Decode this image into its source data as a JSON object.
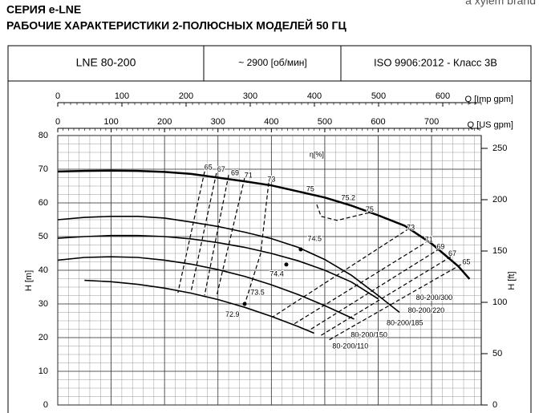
{
  "chart_data": {
    "type": "pump_curve",
    "brand": "a xylem brand",
    "series_title": "СЕРИЯ e-LNE",
    "title": "РАБОЧИЕ ХАРАКТЕРИСТИКИ 2-ПОЛЮСНЫХ МОДЕЛЕЙ 50 ГЦ",
    "header": [
      "LNE 80-200",
      "~ 2900 [об/мин]",
      "ISO 9906:2012 - Класс 3В"
    ],
    "xlabel": "Q [US gpm]",
    "x2label": "Q [Imp gpm]",
    "ylabel": "H [m]",
    "y2label": "H [ft]",
    "xlim": [
      0,
      793
    ],
    "xticks": [
      0,
      100,
      200,
      300,
      400,
      500,
      600,
      700
    ],
    "x2lim": [
      0,
      660
    ],
    "x2ticks": [
      0,
      100,
      200,
      300,
      400,
      500,
      600
    ],
    "ylim": [
      0,
      80
    ],
    "yticks": [
      0,
      10,
      20,
      30,
      40,
      50,
      60,
      70,
      80
    ],
    "y2lim": [
      0,
      262.5
    ],
    "y2ticks": [
      0,
      50,
      100,
      150,
      200,
      250
    ],
    "grid": true,
    "series": [
      {
        "color": "#000000",
        "line_width": 2.5,
        "x": [
          0,
          50,
          100,
          150,
          200,
          250,
          300,
          350,
          400,
          450,
          500,
          550,
          600,
          650,
          700,
          750,
          771
        ],
        "values": [
          69.3,
          69.5,
          69.6,
          69.5,
          69.2,
          68.6,
          67.5,
          66.4,
          65.2,
          63.4,
          61.6,
          59.2,
          56.3,
          53.2,
          47.9,
          41.2,
          37.4
        ]
      },
      {
        "color": "#000000",
        "line_width": 1.6,
        "x": [
          0,
          50,
          100,
          150,
          200,
          250,
          300,
          350,
          400,
          450,
          500,
          550,
          600,
          640
        ],
        "values": [
          55,
          55.7,
          56,
          56,
          55.5,
          54.3,
          53,
          51.3,
          49.4,
          46.8,
          43.2,
          38.5,
          32.5,
          27.5
        ]
      },
      {
        "color": "#000000",
        "line_width": 1.6,
        "x": [
          0,
          50,
          100,
          150,
          200,
          250,
          300,
          350,
          400,
          450,
          500,
          550,
          600
        ],
        "values": [
          49.5,
          50,
          50.3,
          50.3,
          50,
          49.3,
          48.2,
          46.8,
          45,
          42.8,
          40,
          36.5,
          31.5
        ]
      },
      {
        "color": "#000000",
        "line_width": 1.6,
        "x": [
          0,
          50,
          100,
          150,
          200,
          250,
          300,
          350,
          400,
          450,
          500,
          555
        ],
        "values": [
          43,
          43.8,
          44,
          43.8,
          43,
          41.8,
          40.2,
          38.2,
          35.7,
          32.8,
          29.5,
          25.5
        ]
      },
      {
        "color": "#000000",
        "line_width": 1.6,
        "x": [
          50,
          100,
          150,
          200,
          250,
          300,
          350,
          400,
          450,
          480
        ],
        "values": [
          37,
          36.6,
          35.8,
          34.7,
          33.2,
          31.3,
          29,
          26.3,
          23.3,
          21.3
        ]
      }
    ],
    "efficiency_lines": [
      {
        "x": [
          275,
          225
        ],
        "values": [
          69.3,
          33.3
        ]
      },
      {
        "x": [
          297,
          249
        ],
        "values": [
          68.8,
          33.3
        ]
      },
      {
        "x": [
          320,
          275
        ],
        "values": [
          68.3,
          32.6
        ]
      },
      {
        "x": [
          350,
          297
        ],
        "values": [
          67.4,
          32.1
        ]
      },
      {
        "x": [
          395,
          380,
          350
        ],
        "values": [
          66,
          45,
          29.8
        ]
      },
      {
        "x": [
          485,
          493,
          523,
          583
        ],
        "values": [
          59.5,
          56,
          54.8,
          57.1
        ]
      },
      {
        "x": [
          658,
          403
        ],
        "values": [
          52.4,
          26.2
        ]
      },
      {
        "x": [
          695,
          440
        ],
        "values": [
          48.8,
          23.8
        ]
      },
      {
        "x": [
          715,
          470
        ],
        "values": [
          46.4,
          22.1
        ]
      },
      {
        "x": [
          736,
          493
        ],
        "values": [
          44,
          20.7
        ]
      },
      {
        "x": [
          755,
          508
        ],
        "values": [
          41.7,
          19.3
        ]
      }
    ],
    "points": {
      "x": [
        455,
        428,
        350
      ],
      "values": [
        46.2,
        41.7,
        30
      ]
    },
    "annotations": [
      {
        "text": "η[%]",
        "x": 485,
        "y": 74.3
      },
      {
        "text": "65",
        "x": 282,
        "y": 70.5
      },
      {
        "text": "67",
        "x": 306,
        "y": 69.8
      },
      {
        "text": "69",
        "x": 332,
        "y": 68.8
      },
      {
        "text": "71",
        "x": 357,
        "y": 68.1
      },
      {
        "text": "73",
        "x": 400,
        "y": 66.9
      },
      {
        "text": "75",
        "x": 473,
        "y": 64
      },
      {
        "text": "75.2",
        "x": 544,
        "y": 61.4
      },
      {
        "text": "75",
        "x": 584,
        "y": 57.9
      },
      {
        "text": "73",
        "x": 661,
        "y": 52.6
      },
      {
        "text": "71",
        "x": 695,
        "y": 49
      },
      {
        "text": "69",
        "x": 717,
        "y": 46.9
      },
      {
        "text": "67",
        "x": 739,
        "y": 44.8
      },
      {
        "text": "65",
        "x": 765,
        "y": 42.4
      },
      {
        "text": "74.5",
        "x": 481,
        "y": 49.3
      },
      {
        "text": "74.4",
        "x": 410,
        "y": 38.8
      },
      {
        "text": "73.5",
        "x": 374,
        "y": 33.3
      },
      {
        "text": "72.9",
        "x": 327,
        "y": 26.7
      },
      {
        "text": "80-200/300",
        "x": 705,
        "y": 31.7
      },
      {
        "text": "80-200/220",
        "x": 690,
        "y": 27.9
      },
      {
        "text": "80-200/185",
        "x": 650,
        "y": 24.3
      },
      {
        "text": "80-200/150",
        "x": 583,
        "y": 20.7
      },
      {
        "text": "80-200/110",
        "x": 548,
        "y": 17.4
      }
    ]
  }
}
